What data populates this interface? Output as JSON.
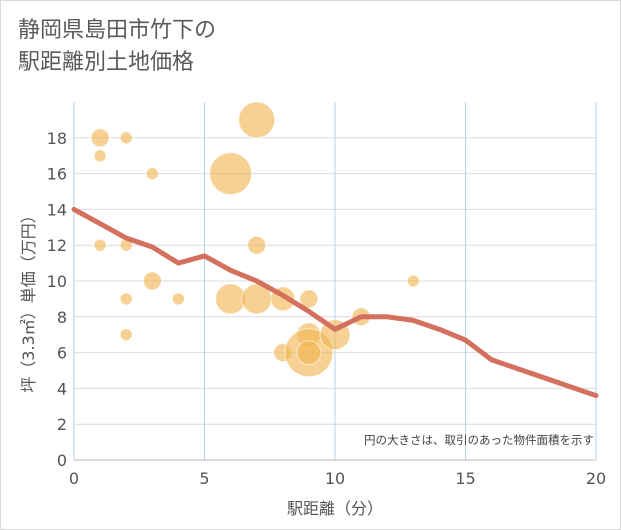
{
  "chart_data": {
    "type": "scatter",
    "title": "静岡県島田市竹下の\n駅距離別土地価格",
    "xlabel": "駅距離（分）",
    "ylabel": "坪（3.3㎡）単価（万円）",
    "xlim": [
      0,
      20
    ],
    "ylim": [
      0,
      20
    ],
    "xticks": [
      0,
      5,
      10,
      15,
      20
    ],
    "yticks": [
      0,
      2,
      4,
      6,
      8,
      10,
      12,
      14,
      16,
      18
    ],
    "grid": true,
    "annotation": "円の大きさは、取引のあった物件面積を示す",
    "bubble_color": "#f0b450",
    "line_color": "#d4705e",
    "bubbles": [
      {
        "x": 1,
        "y": 18,
        "size": 2
      },
      {
        "x": 1,
        "y": 17,
        "size": 1
      },
      {
        "x": 1,
        "y": 12,
        "size": 1
      },
      {
        "x": 2,
        "y": 18,
        "size": 1
      },
      {
        "x": 2,
        "y": 12,
        "size": 1
      },
      {
        "x": 2,
        "y": 9,
        "size": 1
      },
      {
        "x": 2,
        "y": 7,
        "size": 1
      },
      {
        "x": 3,
        "y": 16,
        "size": 1
      },
      {
        "x": 3,
        "y": 10,
        "size": 2
      },
      {
        "x": 4,
        "y": 9,
        "size": 1
      },
      {
        "x": 6,
        "y": 16,
        "size": 6
      },
      {
        "x": 6,
        "y": 9,
        "size": 4
      },
      {
        "x": 7,
        "y": 19,
        "size": 5
      },
      {
        "x": 7,
        "y": 12,
        "size": 2
      },
      {
        "x": 7,
        "y": 9,
        "size": 4
      },
      {
        "x": 8,
        "y": 9,
        "size": 3
      },
      {
        "x": 8,
        "y": 6,
        "size": 2
      },
      {
        "x": 9,
        "y": 9,
        "size": 2
      },
      {
        "x": 9,
        "y": 7,
        "size": 3
      },
      {
        "x": 9,
        "y": 6,
        "size": 7
      },
      {
        "x": 9,
        "y": 6,
        "size": 3
      },
      {
        "x": 10,
        "y": 7,
        "size": 4
      },
      {
        "x": 11,
        "y": 8,
        "size": 2
      },
      {
        "x": 13,
        "y": 10,
        "size": 1
      }
    ],
    "trend_line": {
      "x": [
        0,
        1,
        2,
        3,
        4,
        5,
        6,
        7,
        8,
        9,
        10,
        11,
        12,
        13,
        14,
        15,
        16,
        17,
        18,
        19,
        20
      ],
      "y": [
        14,
        13.2,
        12.4,
        11.9,
        11.0,
        11.4,
        10.6,
        10.0,
        9.2,
        8.3,
        7.3,
        8.0,
        8.0,
        7.8,
        7.3,
        6.7,
        5.6,
        5.1,
        4.6,
        4.1,
        3.6
      ]
    }
  }
}
